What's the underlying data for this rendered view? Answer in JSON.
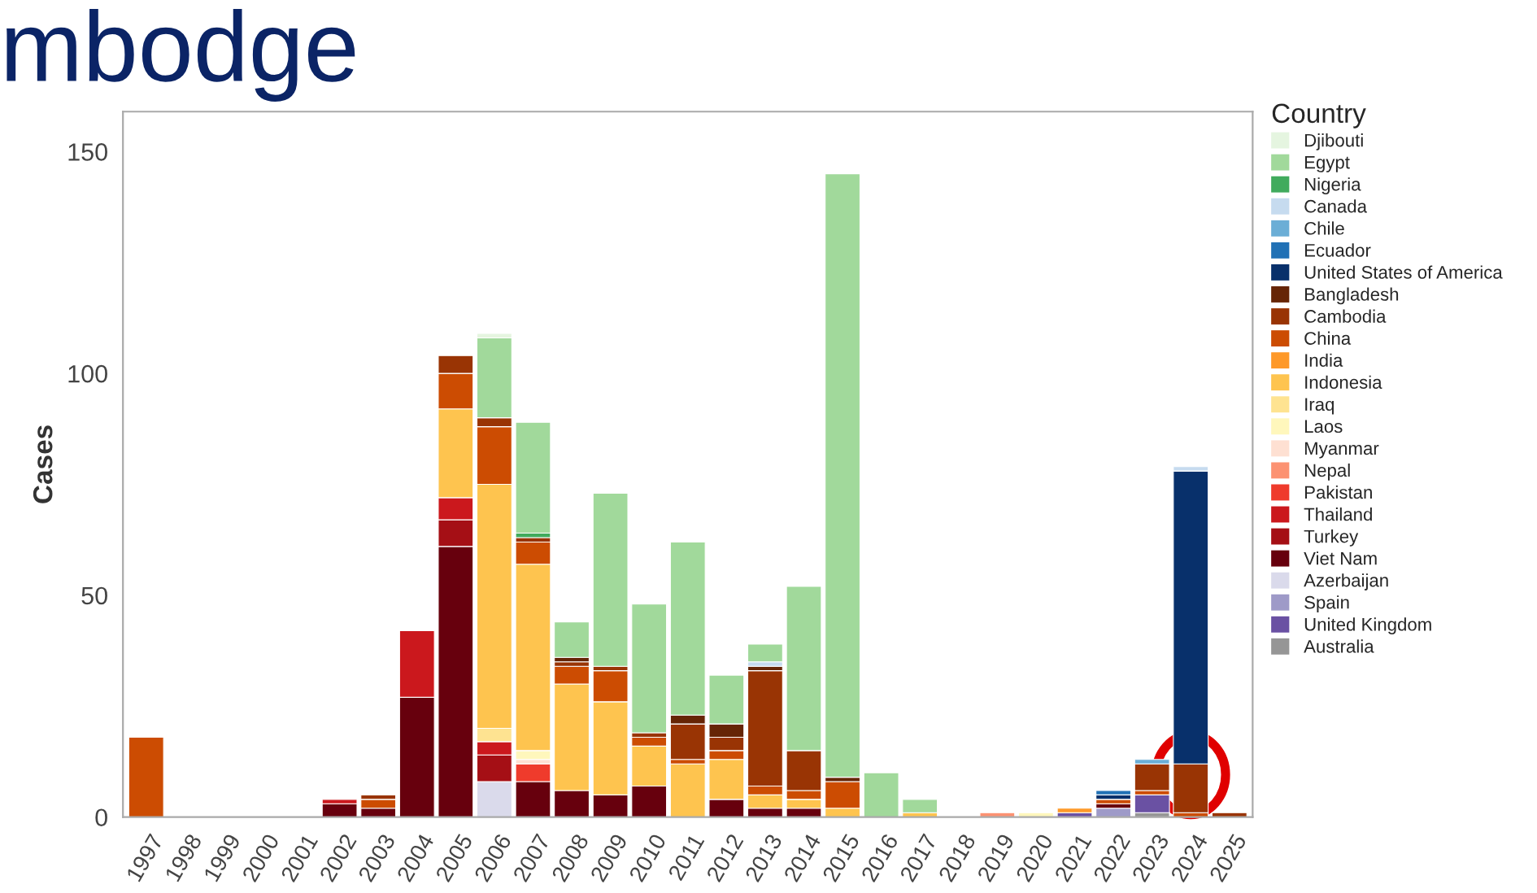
{
  "chart_data": {
    "type": "bar",
    "stacked": true,
    "title": "mbodge",
    "ylabel": "Cases",
    "legend_title": "Country",
    "legend": "right",
    "grid": false,
    "categories": [
      "1997",
      "1998",
      "1999",
      "2000",
      "2001",
      "2002",
      "2003",
      "2004",
      "2005",
      "2006",
      "2007",
      "2008",
      "2009",
      "2010",
      "2011",
      "2012",
      "2013",
      "2014",
      "2015",
      "2016",
      "2017",
      "2018",
      "2019",
      "2020",
      "2021",
      "2022",
      "2023",
      "2024",
      "2025"
    ],
    "ylim": [
      0,
      159
    ],
    "yticks": [
      0,
      50,
      100,
      150
    ],
    "series": [
      {
        "name": "Australia",
        "color": "#969696",
        "values": [
          null,
          null,
          null,
          null,
          null,
          null,
          null,
          null,
          null,
          null,
          null,
          null,
          null,
          null,
          null,
          null,
          null,
          null,
          null,
          null,
          null,
          null,
          null,
          null,
          null,
          null,
          1,
          null,
          null
        ]
      },
      {
        "name": "United Kingdom",
        "color": "#6a51a3",
        "values": [
          null,
          null,
          null,
          null,
          null,
          null,
          null,
          null,
          null,
          null,
          null,
          null,
          null,
          null,
          null,
          null,
          null,
          null,
          null,
          null,
          null,
          null,
          null,
          null,
          1,
          null,
          4,
          null,
          null
        ]
      },
      {
        "name": "Spain",
        "color": "#9e9ac8",
        "values": [
          null,
          null,
          null,
          null,
          null,
          null,
          null,
          null,
          null,
          null,
          null,
          null,
          null,
          null,
          null,
          null,
          null,
          null,
          null,
          null,
          null,
          null,
          null,
          null,
          null,
          2,
          null,
          null,
          null
        ]
      },
      {
        "name": "Azerbaijan",
        "color": "#dadaeb",
        "values": [
          null,
          null,
          null,
          null,
          null,
          null,
          null,
          null,
          null,
          8,
          null,
          null,
          null,
          null,
          null,
          null,
          null,
          null,
          null,
          null,
          null,
          null,
          null,
          null,
          null,
          null,
          null,
          null,
          null
        ]
      },
      {
        "name": "Viet Nam",
        "color": "#67000d",
        "values": [
          null,
          null,
          null,
          null,
          null,
          3,
          2,
          27,
          61,
          null,
          8,
          6,
          5,
          7,
          null,
          4,
          2,
          2,
          null,
          null,
          null,
          null,
          null,
          null,
          null,
          1,
          null,
          null,
          null
        ]
      },
      {
        "name": "Turkey",
        "color": "#a50f15",
        "values": [
          null,
          null,
          null,
          null,
          null,
          null,
          null,
          null,
          6,
          6,
          null,
          null,
          null,
          null,
          null,
          null,
          null,
          null,
          null,
          null,
          null,
          null,
          null,
          null,
          null,
          null,
          null,
          null,
          null
        ]
      },
      {
        "name": "Thailand",
        "color": "#cb181d",
        "values": [
          null,
          null,
          null,
          null,
          null,
          1,
          null,
          15,
          5,
          3,
          null,
          null,
          null,
          null,
          null,
          null,
          null,
          null,
          null,
          null,
          null,
          null,
          null,
          null,
          null,
          null,
          null,
          null,
          null
        ]
      },
      {
        "name": "Pakistan",
        "color": "#ef3b2c",
        "values": [
          null,
          null,
          null,
          null,
          null,
          null,
          null,
          null,
          null,
          null,
          4,
          null,
          null,
          null,
          null,
          null,
          null,
          null,
          null,
          null,
          null,
          null,
          null,
          null,
          null,
          null,
          null,
          null,
          null
        ]
      },
      {
        "name": "Nepal",
        "color": "#fc9272",
        "values": [
          null,
          null,
          null,
          null,
          null,
          null,
          null,
          null,
          null,
          null,
          null,
          null,
          null,
          null,
          null,
          null,
          null,
          null,
          null,
          null,
          null,
          null,
          1,
          null,
          null,
          null,
          null,
          null,
          null
        ]
      },
      {
        "name": "Myanmar",
        "color": "#fee0d2",
        "values": [
          null,
          null,
          null,
          null,
          null,
          null,
          null,
          null,
          null,
          null,
          1,
          null,
          null,
          null,
          null,
          null,
          null,
          null,
          null,
          null,
          null,
          null,
          null,
          null,
          null,
          null,
          null,
          null,
          null
        ]
      },
      {
        "name": "Laos",
        "color": "#fff7bc",
        "values": [
          null,
          null,
          null,
          null,
          null,
          null,
          null,
          null,
          null,
          null,
          2,
          null,
          null,
          null,
          null,
          null,
          null,
          null,
          null,
          null,
          null,
          null,
          null,
          1,
          null,
          null,
          null,
          null,
          null
        ]
      },
      {
        "name": "Iraq",
        "color": "#fee391",
        "values": [
          null,
          null,
          null,
          null,
          null,
          null,
          null,
          null,
          null,
          3,
          null,
          null,
          null,
          null,
          null,
          null,
          null,
          null,
          null,
          null,
          null,
          null,
          null,
          null,
          null,
          null,
          null,
          null,
          null
        ]
      },
      {
        "name": "Indonesia",
        "color": "#fec44f",
        "values": [
          null,
          null,
          null,
          null,
          null,
          null,
          null,
          null,
          20,
          55,
          42,
          24,
          21,
          9,
          12,
          9,
          3,
          2,
          2,
          null,
          1,
          null,
          null,
          null,
          null,
          null,
          null,
          null,
          null
        ]
      },
      {
        "name": "India",
        "color": "#fe9929",
        "values": [
          null,
          null,
          null,
          null,
          null,
          null,
          null,
          null,
          null,
          null,
          null,
          null,
          null,
          null,
          null,
          null,
          null,
          null,
          null,
          null,
          null,
          null,
          null,
          null,
          1,
          null,
          null,
          null,
          null
        ]
      },
      {
        "name": "China",
        "color": "#cc4c02",
        "values": [
          18,
          null,
          null,
          null,
          null,
          null,
          2,
          null,
          8,
          13,
          5,
          4,
          7,
          2,
          1,
          2,
          2,
          2,
          6,
          null,
          null,
          null,
          null,
          null,
          null,
          1,
          1,
          1,
          null
        ]
      },
      {
        "name": "Cambodia",
        "color": "#993404",
        "values": [
          null,
          null,
          null,
          null,
          null,
          null,
          1,
          null,
          4,
          2,
          1,
          1,
          1,
          1,
          8,
          3,
          26,
          9,
          null,
          null,
          null,
          null,
          null,
          null,
          null,
          null,
          6,
          11,
          1
        ]
      },
      {
        "name": "Bangladesh",
        "color": "#662506",
        "values": [
          null,
          null,
          null,
          null,
          null,
          null,
          null,
          null,
          null,
          null,
          null,
          1,
          null,
          null,
          2,
          3,
          1,
          null,
          1,
          null,
          null,
          null,
          null,
          null,
          null,
          null,
          null,
          null,
          null
        ]
      },
      {
        "name": "United States of America",
        "color": "#08306b",
        "values": [
          null,
          null,
          null,
          null,
          null,
          null,
          null,
          null,
          null,
          null,
          null,
          null,
          null,
          null,
          null,
          null,
          null,
          null,
          null,
          null,
          null,
          null,
          null,
          null,
          null,
          1,
          null,
          66,
          null
        ]
      },
      {
        "name": "Ecuador",
        "color": "#2171b5",
        "values": [
          null,
          null,
          null,
          null,
          null,
          null,
          null,
          null,
          null,
          null,
          null,
          null,
          null,
          null,
          null,
          null,
          null,
          null,
          null,
          null,
          null,
          null,
          null,
          null,
          null,
          1,
          null,
          null,
          null
        ]
      },
      {
        "name": "Chile",
        "color": "#6baed6",
        "values": [
          null,
          null,
          null,
          null,
          null,
          null,
          null,
          null,
          null,
          null,
          null,
          null,
          null,
          null,
          null,
          null,
          null,
          null,
          null,
          null,
          null,
          null,
          null,
          null,
          null,
          null,
          1,
          null,
          null
        ]
      },
      {
        "name": "Canada",
        "color": "#c6dbef",
        "values": [
          null,
          null,
          null,
          null,
          null,
          null,
          null,
          null,
          null,
          null,
          null,
          null,
          null,
          null,
          null,
          null,
          1,
          null,
          null,
          null,
          null,
          null,
          null,
          null,
          null,
          null,
          null,
          1,
          null
        ]
      },
      {
        "name": "Nigeria",
        "color": "#41ab5d",
        "values": [
          null,
          null,
          null,
          null,
          null,
          null,
          null,
          null,
          null,
          null,
          1,
          null,
          null,
          null,
          null,
          null,
          null,
          null,
          null,
          null,
          null,
          null,
          null,
          null,
          null,
          null,
          null,
          null,
          null
        ]
      },
      {
        "name": "Egypt",
        "color": "#a1d99b",
        "values": [
          null,
          null,
          null,
          null,
          null,
          null,
          null,
          null,
          null,
          18,
          25,
          8,
          39,
          29,
          39,
          11,
          4,
          37,
          136,
          10,
          3,
          null,
          null,
          null,
          null,
          null,
          null,
          null,
          null
        ]
      },
      {
        "name": "Djibouti",
        "color": "#e5f5e0",
        "values": [
          null,
          null,
          null,
          null,
          null,
          null,
          null,
          null,
          null,
          1,
          null,
          null,
          null,
          null,
          null,
          null,
          null,
          null,
          null,
          null,
          null,
          null,
          null,
          null,
          null,
          null,
          null,
          null,
          null
        ]
      }
    ]
  }
}
